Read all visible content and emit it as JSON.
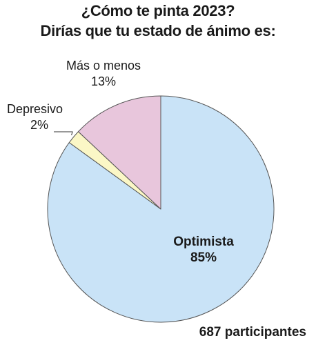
{
  "header": {
    "title_line1": "¿Cómo te pinta 2023?",
    "title_line2": "Dirías que tu estado de ánimo es:"
  },
  "footer": {
    "participants": "687 participantes"
  },
  "chart_data": {
    "type": "pie",
    "title": "¿Cómo te pinta 2023? Dirías que tu estado de ánimo es:",
    "slices": [
      {
        "label": "Optimista",
        "value": 85,
        "value_label": "85%",
        "color": "#c9e3f7"
      },
      {
        "label": "Depresivo",
        "value": 2,
        "value_label": "2%",
        "color": "#fbf7c6"
      },
      {
        "label": "Más o menos",
        "value": 13,
        "value_label": "13%",
        "color": "#e8c6dc"
      }
    ],
    "start": "12 o'clock",
    "direction": "clockwise",
    "outline_color": "#555555"
  }
}
